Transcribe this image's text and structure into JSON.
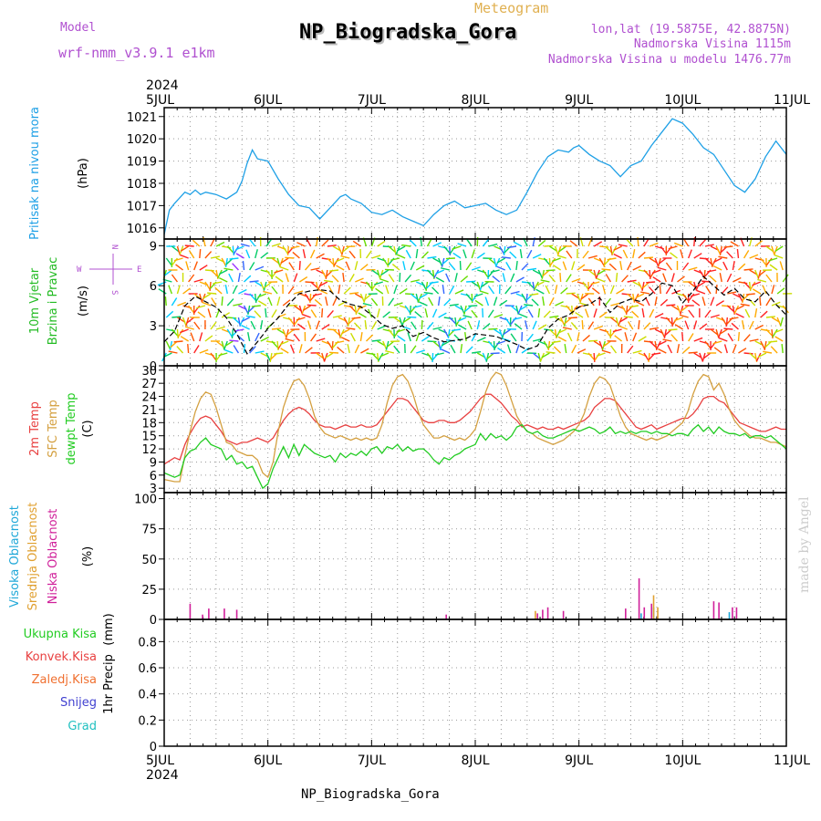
{
  "header": {
    "model_label": "Model",
    "model_value": "wrf-nmm_v3.9.1  e1km",
    "subtitle": "Meteogram",
    "title": "NP_Biogradska_Gora",
    "coords": "lon,lat (19.5875E, 42.8875N)",
    "elevation": "Nadmorska Visina 1115m",
    "model_elevation": "Nadmorska Visina u modelu 1476.77m",
    "footer_station": "NP_Biogradska_Gora",
    "watermark": "made by Angel",
    "year_top": "2024",
    "year_bottom": "2024"
  },
  "colors": {
    "pressure": "#1ea0e6",
    "wind_label": "#22bb22",
    "temp2m": "#e84040",
    "sfc_temp": "#d4a040",
    "dewpoint": "#22cc22",
    "cloud_high": "#20a8d8",
    "cloud_mid": "#e0a030",
    "cloud_low": "#d0209a",
    "precip_total": "#22cc22",
    "precip_conv": "#e84040",
    "precip_frz": "#f07030",
    "snow": "#4040d0",
    "hail": "#20c0c0",
    "header_purple": "#b050d0"
  },
  "chart_data": [
    {
      "type": "line",
      "panel": "pressure",
      "ylabel": "Pritisak na nivou mora",
      "unit": "(hPa)",
      "ylim": [
        1015.5,
        1021.4
      ],
      "yticks": [
        "1016",
        "1017",
        "1018",
        "1019",
        "1020",
        "1021"
      ],
      "x_day_offsets": [
        0,
        0.05,
        0.1,
        0.2,
        0.25,
        0.3,
        0.35,
        0.4,
        0.5,
        0.6,
        0.7,
        0.75,
        0.8,
        0.85,
        0.9,
        1.0,
        1.1,
        1.2,
        1.3,
        1.4,
        1.5,
        1.6,
        1.7,
        1.75,
        1.8,
        1.9,
        2.0,
        2.1,
        2.2,
        2.3,
        2.4,
        2.5,
        2.6,
        2.7,
        2.75,
        2.8,
        2.9,
        3.0,
        3.1,
        3.2,
        3.3,
        3.4,
        3.5,
        3.6,
        3.7,
        3.8,
        3.9,
        3.95,
        4.0,
        4.1,
        4.2,
        4.3,
        4.4,
        4.5,
        4.6,
        4.7,
        4.8,
        4.9,
        5.0,
        5.1,
        5.2,
        5.3,
        5.4,
        5.5,
        5.6,
        5.7,
        5.8,
        5.9,
        6.0
      ],
      "series": [
        {
          "values": [
            1015.7,
            1016.8,
            1017.1,
            1017.6,
            1017.5,
            1017.7,
            1017.5,
            1017.6,
            1017.5,
            1017.3,
            1017.6,
            1018.1,
            1018.9,
            1019.5,
            1019.1,
            1019.0,
            1018.2,
            1017.5,
            1017.0,
            1016.9,
            1016.4,
            1016.9,
            1017.4,
            1017.5,
            1017.3,
            1017.1,
            1016.7,
            1016.6,
            1016.8,
            1016.5,
            1016.3,
            1016.1,
            1016.6,
            1017.0,
            1017.1,
            1017.2,
            1016.9,
            1017.0,
            1017.1,
            1016.8,
            1016.6,
            1016.8,
            1017.6,
            1018.5,
            1019.2,
            1019.5,
            1019.4,
            1019.6,
            1019.7,
            1019.3,
            1019.0,
            1018.8,
            1018.3,
            1018.8,
            1019.0,
            1019.7,
            1020.3,
            1020.9,
            1020.7,
            1020.2,
            1019.6,
            1019.3,
            1018.6,
            1017.9,
            1017.6,
            1018.2,
            1019.2,
            1019.9,
            1019.3
          ]
        }
      ]
    },
    {
      "type": "line",
      "panel": "wind",
      "ylabel": "10m Vjetar",
      "ylabel2": "Brzina i Pravac",
      "unit": "(m/s)",
      "compass": {
        "n": "N",
        "s": "S",
        "w": "W",
        "e": "E"
      },
      "ylim": [
        0,
        9.5
      ],
      "yticks": [
        "0",
        "3",
        "6",
        "9"
      ],
      "x_day_offsets": [
        0,
        0.1,
        0.2,
        0.3,
        0.35,
        0.4,
        0.5,
        0.6,
        0.7,
        0.8,
        0.9,
        1.0,
        1.1,
        1.2,
        1.3,
        1.4,
        1.5,
        1.6,
        1.7,
        1.8,
        1.9,
        2.0,
        2.1,
        2.2,
        2.3,
        2.4,
        2.5,
        2.6,
        2.7,
        2.8,
        2.9,
        3.0,
        3.2,
        3.4,
        3.5,
        3.6,
        3.7,
        3.8,
        3.9,
        4.0,
        4.1,
        4.2,
        4.3,
        4.4,
        4.5,
        4.6,
        4.7,
        4.8,
        4.9,
        5.0,
        5.1,
        5.2,
        5.3,
        5.4,
        5.5,
        5.6,
        5.7,
        5.8,
        5.9,
        6.0
      ],
      "series": [
        {
          "name": "speed",
          "values": [
            1.8,
            2.6,
            4.5,
            5.2,
            5.0,
            4.8,
            4.4,
            3.6,
            2.4,
            0.9,
            1.8,
            2.8,
            3.6,
            4.6,
            5.4,
            5.6,
            5.7,
            5.6,
            4.9,
            4.6,
            4.4,
            3.8,
            3.1,
            2.8,
            3.0,
            2.2,
            2.5,
            2.1,
            1.8,
            1.9,
            2.0,
            2.4,
            2.2,
            1.6,
            1.2,
            1.5,
            2.8,
            3.5,
            3.8,
            4.4,
            4.6,
            5.1,
            4.0,
            4.7,
            5.0,
            4.8,
            5.4,
            6.2,
            6.0,
            4.7,
            5.6,
            6.7,
            6.0,
            5.3,
            5.8,
            5.0,
            4.8,
            5.6,
            4.6,
            3.8
          ]
        }
      ]
    },
    {
      "type": "line",
      "panel": "temperature",
      "series_labels": [
        "2m Temp",
        "SFC Temp",
        "dewpt Temp"
      ],
      "unit": "(C)",
      "ylim": [
        2,
        31
      ],
      "yticks": [
        "3",
        "6",
        "9",
        "12",
        "15",
        "18",
        "21",
        "24",
        "27",
        "30"
      ],
      "x_day_offsets": [
        0,
        0.1,
        0.15,
        0.2,
        0.25,
        0.3,
        0.35,
        0.4,
        0.45,
        0.5,
        0.55,
        0.6,
        0.65,
        0.7,
        0.75,
        0.8,
        0.85,
        0.9,
        0.95,
        1.0,
        1.05,
        1.1,
        1.15,
        1.2,
        1.25,
        1.3,
        1.35,
        1.4,
        1.45,
        1.5,
        1.55,
        1.6,
        1.65,
        1.7,
        1.75,
        1.8,
        1.85,
        1.9,
        1.95,
        2.0,
        2.05,
        2.1,
        2.15,
        2.2,
        2.25,
        2.3,
        2.35,
        2.4,
        2.45,
        2.5,
        2.55,
        2.6,
        2.65,
        2.7,
        2.75,
        2.8,
        2.85,
        2.9,
        2.95,
        3.0,
        3.05,
        3.1,
        3.15,
        3.2,
        3.25,
        3.3,
        3.35,
        3.4,
        3.45,
        3.5,
        3.55,
        3.6,
        3.65,
        3.7,
        3.75,
        3.8,
        3.85,
        3.9,
        3.95,
        4.0,
        4.05,
        4.1,
        4.15,
        4.2,
        4.25,
        4.3,
        4.35,
        4.4,
        4.45,
        4.5,
        4.55,
        4.6,
        4.65,
        4.7,
        4.75,
        4.8,
        4.85,
        4.9,
        4.95,
        5.0,
        5.05,
        5.1,
        5.15,
        5.2,
        5.25,
        5.3,
        5.35,
        5.4,
        5.45,
        5.5,
        5.55,
        5.6,
        5.65,
        5.7,
        5.75,
        5.8,
        5.85,
        5.9,
        5.95,
        6.0
      ],
      "series": [
        {
          "name": "2m Temp",
          "values": [
            8.5,
            10.0,
            9.5,
            13.0,
            15.5,
            17.5,
            19.0,
            19.5,
            19.0,
            17.5,
            16.0,
            14.0,
            13.5,
            13.0,
            13.5,
            13.5,
            14.0,
            14.5,
            14.0,
            13.5,
            14.5,
            16.5,
            18.5,
            20.0,
            21.0,
            21.5,
            21.0,
            20.0,
            18.5,
            17.5,
            17.0,
            17.0,
            16.5,
            17.0,
            17.5,
            17.0,
            17.0,
            17.5,
            17.0,
            17.0,
            17.5,
            19.0,
            20.5,
            22.0,
            23.5,
            23.5,
            23.0,
            21.5,
            20.0,
            18.5,
            18.0,
            18.0,
            18.5,
            18.5,
            18.0,
            18.0,
            18.5,
            19.5,
            20.5,
            22.0,
            23.5,
            24.5,
            24.5,
            23.5,
            22.5,
            21.0,
            19.5,
            18.5,
            17.0,
            17.5,
            17.0,
            16.5,
            17.0,
            16.5,
            16.5,
            17.0,
            16.5,
            17.0,
            17.5,
            18.0,
            18.5,
            19.5,
            21.5,
            22.5,
            23.5,
            23.5,
            23.0,
            21.5,
            20.0,
            18.5,
            17.0,
            16.5,
            17.0,
            17.5,
            16.5,
            17.0,
            17.5,
            18.0,
            18.5,
            19.0,
            19.0,
            20.0,
            21.5,
            23.5,
            24.0,
            24.0,
            23.0,
            22.5,
            21.0,
            19.5,
            18.0,
            17.5,
            17.0,
            16.5,
            16.0,
            16.0,
            16.5,
            17.0,
            16.5,
            16.5
          ]
        },
        {
          "name": "SFC Temp",
          "values": [
            5.0,
            4.5,
            4.5,
            10.5,
            16.0,
            20.5,
            23.5,
            25.0,
            24.5,
            21.5,
            17.5,
            13.5,
            13.0,
            11.5,
            11.0,
            10.5,
            10.5,
            9.5,
            6.5,
            5.5,
            9.0,
            16.0,
            21.5,
            25.0,
            27.5,
            28.0,
            26.5,
            23.5,
            19.5,
            17.0,
            15.5,
            15.0,
            14.5,
            15.0,
            14.5,
            14.0,
            14.5,
            14.0,
            14.5,
            14.0,
            14.5,
            17.5,
            22.5,
            26.5,
            28.5,
            29.0,
            27.5,
            24.5,
            20.5,
            17.5,
            16.0,
            14.5,
            14.5,
            15.0,
            14.5,
            14.0,
            14.5,
            14.0,
            15.0,
            16.5,
            20.5,
            25.0,
            28.0,
            29.5,
            29.0,
            26.5,
            23.0,
            19.5,
            17.5,
            16.0,
            15.5,
            14.5,
            14.0,
            13.5,
            13.0,
            13.5,
            14.0,
            15.0,
            16.0,
            17.5,
            20.0,
            24.0,
            27.0,
            28.5,
            28.0,
            26.5,
            23.0,
            19.5,
            17.0,
            15.5,
            15.0,
            14.5,
            14.0,
            14.5,
            14.0,
            14.5,
            15.0,
            16.0,
            17.0,
            18.0,
            20.5,
            24.5,
            27.5,
            29.0,
            28.5,
            25.5,
            27.0,
            24.5,
            21.0,
            18.5,
            17.0,
            16.0,
            15.0,
            14.5,
            14.5,
            14.0,
            13.5,
            13.5,
            13.0,
            12.5
          ]
        },
        {
          "name": "dewpt Temp",
          "values": [
            6.5,
            5.5,
            6.0,
            10.0,
            11.5,
            12.0,
            13.5,
            14.5,
            13.0,
            12.5,
            12.0,
            9.5,
            10.5,
            8.5,
            9.0,
            7.5,
            8.0,
            5.5,
            3.0,
            4.0,
            7.5,
            10.0,
            12.5,
            10.0,
            13.0,
            10.5,
            13.0,
            12.0,
            11.0,
            10.5,
            10.0,
            10.5,
            9.0,
            11.0,
            10.0,
            11.0,
            10.5,
            11.5,
            10.5,
            12.0,
            12.5,
            11.0,
            12.5,
            12.0,
            13.0,
            11.5,
            12.5,
            11.5,
            12.0,
            12.0,
            11.0,
            9.5,
            8.5,
            10.0,
            9.5,
            10.5,
            11.0,
            12.0,
            12.5,
            13.0,
            15.5,
            14.0,
            15.5,
            14.5,
            15.0,
            14.0,
            15.0,
            17.0,
            17.5,
            16.0,
            15.5,
            16.0,
            15.0,
            14.5,
            14.5,
            15.0,
            15.5,
            16.0,
            16.5,
            16.0,
            16.5,
            17.0,
            16.5,
            15.5,
            16.0,
            17.0,
            15.5,
            16.0,
            15.5,
            16.0,
            15.5,
            16.0,
            16.0,
            15.5,
            16.0,
            15.5,
            15.5,
            15.0,
            15.5,
            15.5,
            15.0,
            16.5,
            17.5,
            16.0,
            17.0,
            15.5,
            17.0,
            16.0,
            15.5,
            15.5,
            15.0,
            15.5,
            14.5,
            15.0,
            15.0,
            14.5,
            15.0,
            14.0,
            13.0,
            12.0
          ]
        }
      ]
    },
    {
      "type": "bar",
      "panel": "cloud",
      "series_labels": [
        "Visoka Oblacnost",
        "Srednja Oblacnost",
        "Niska Oblacnost"
      ],
      "unit": "(%)",
      "ylim": [
        0,
        105
      ],
      "yticks": [
        "0",
        "25",
        "50",
        "75",
        "100"
      ],
      "series": [
        {
          "name": "Visoka Oblacnost",
          "x_day_offsets": [
            4.6,
            4.72,
            5.45
          ],
          "values": [
            5,
            10,
            6
          ]
        },
        {
          "name": "Srednja Oblacnost",
          "x_day_offsets": [
            3.58,
            4.72,
            4.76
          ],
          "values": [
            7,
            20,
            10
          ]
        },
        {
          "name": "Niska Oblacnost",
          "x_day_offsets": [
            0.25,
            0.37,
            0.43,
            0.58,
            0.7,
            2.72,
            3.6,
            3.65,
            3.7,
            3.85,
            4.45,
            4.58,
            4.63,
            4.7,
            5.3,
            5.35,
            5.48,
            5.52
          ],
          "values": [
            13,
            4,
            9,
            9,
            8,
            4,
            5,
            8,
            10,
            7,
            9,
            34,
            10,
            13,
            15,
            14,
            10,
            10
          ]
        }
      ]
    },
    {
      "type": "bar",
      "panel": "precip",
      "series_labels": [
        "Ukupna Kisa",
        "Konvek.Kisa",
        "Zaledj.Kisa",
        "Snijeg",
        "Grad"
      ],
      "ylabel": "1hr Precip",
      "unit": "(mm)",
      "ylim": [
        0,
        0.97
      ],
      "yticks": [
        "0",
        "0.2",
        "0.4",
        "0.6",
        "0.8"
      ],
      "series": []
    }
  ],
  "x_axis": {
    "ticks": [
      "5JUL",
      "6JUL",
      "7JUL",
      "8JUL",
      "9JUL",
      "10JUL",
      "11JUL"
    ]
  }
}
